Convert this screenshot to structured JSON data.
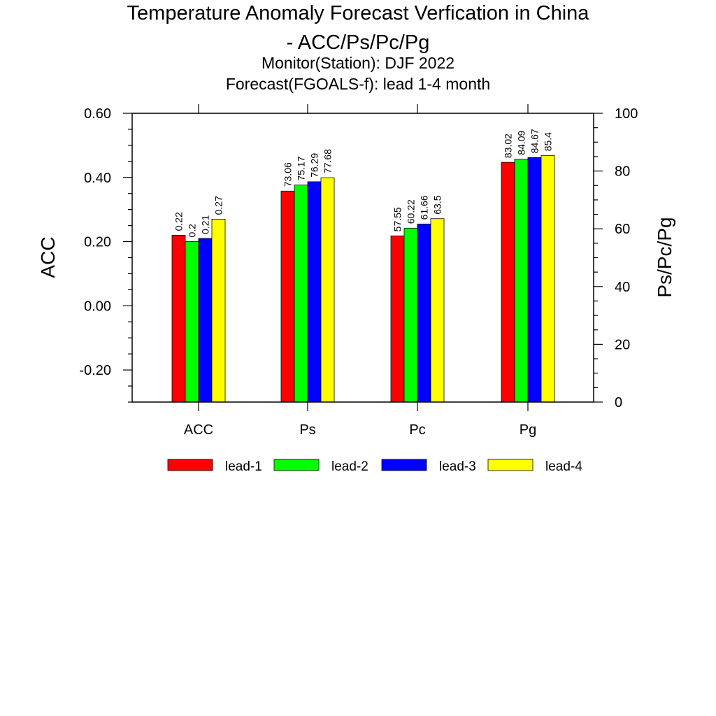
{
  "chart_data": {
    "type": "bar",
    "title_line1": "Temperature Anomaly Forecast Verfication in China",
    "title_line2": "- ACC/Ps/Pc/Pg",
    "subtitle_line1": "Monitor(Station): DJF 2022",
    "subtitle_line2": "Forecast(FGOALS-f): lead 1-4 month",
    "categories": [
      "ACC",
      "Ps",
      "Pc",
      "Pg"
    ],
    "y_left": {
      "label": "ACC",
      "range": [
        -0.3,
        0.6
      ],
      "ticks": [
        -0.2,
        0.0,
        0.2,
        0.4,
        0.6
      ],
      "tick_labels": [
        "-0.20",
        "0.00",
        "0.20",
        "0.40",
        "0.60"
      ]
    },
    "y_right": {
      "label": "Ps/Pc/Pg",
      "range": [
        0,
        100
      ],
      "ticks": [
        0,
        20,
        40,
        60,
        80,
        100
      ],
      "tick_labels": [
        "0",
        "20",
        "40",
        "60",
        "80",
        "100"
      ]
    },
    "series": [
      {
        "name": "lead-1",
        "color": "#ff0000",
        "values": [
          0.22,
          73.06,
          57.55,
          83.02
        ],
        "labels": [
          "0.22",
          "73.06",
          "57.55",
          "83.02"
        ]
      },
      {
        "name": "lead-2",
        "color": "#00ff00",
        "values": [
          0.2,
          75.17,
          60.22,
          84.09
        ],
        "labels": [
          "0.2",
          "75.17",
          "60.22",
          "84.09"
        ]
      },
      {
        "name": "lead-3",
        "color": "#0000ff",
        "values": [
          0.21,
          76.29,
          61.66,
          84.67
        ],
        "labels": [
          "0.21",
          "76.29",
          "61.66",
          "84.67"
        ]
      },
      {
        "name": "lead-4",
        "color": "#ffff00",
        "values": [
          0.27,
          77.68,
          63.5,
          85.4
        ],
        "labels": [
          "0.27",
          "77.68",
          "63.5",
          "85.4"
        ]
      }
    ],
    "legend_position": "bottom",
    "grid": false
  }
}
